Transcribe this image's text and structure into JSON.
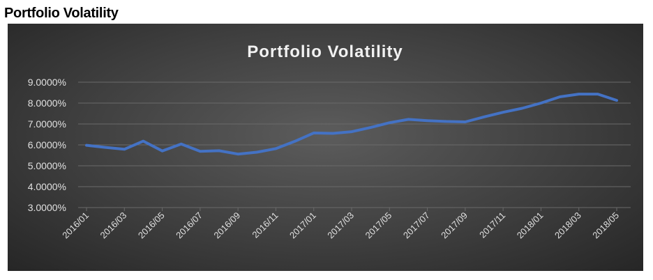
{
  "page": {
    "heading": "Portfolio Volatility"
  },
  "colors": {
    "line": "#4472C4",
    "grid": "#6a6a6a",
    "background": "#404040",
    "text": "#e0e0e0"
  },
  "chart_data": {
    "type": "line",
    "title": "Portfolio Volatility",
    "xlabel": "",
    "ylabel": "",
    "ylim": [
      0.03,
      0.09
    ],
    "yticks": [
      "3.0000%",
      "4.0000%",
      "5.0000%",
      "6.0000%",
      "7.0000%",
      "8.0000%",
      "9.0000%"
    ],
    "ytick_values": [
      0.03,
      0.04,
      0.05,
      0.06,
      0.07,
      0.08,
      0.09
    ],
    "xtick_labels": [
      "2016/01",
      "2016/03",
      "2016/05",
      "2016/07",
      "2016/09",
      "2016/11",
      "2017/01",
      "2017/03",
      "2017/05",
      "2017/07",
      "2017/09",
      "2017/11",
      "2018/01",
      "2018/03",
      "2018/05"
    ],
    "grid": true,
    "legend": "none",
    "x": [
      "2016/01",
      "2016/02",
      "2016/03",
      "2016/04",
      "2016/05",
      "2016/06",
      "2016/07",
      "2016/08",
      "2016/09",
      "2016/10",
      "2016/11",
      "2016/12",
      "2017/01",
      "2017/02",
      "2017/03",
      "2017/04",
      "2017/05",
      "2017/06",
      "2017/07",
      "2017/08",
      "2017/09",
      "2017/10",
      "2017/11",
      "2017/12",
      "2018/01",
      "2018/02",
      "2018/03",
      "2018/04",
      "2018/05"
    ],
    "series": [
      {
        "values": [
          0.0598,
          0.0588,
          0.0579,
          0.0618,
          0.0571,
          0.0604,
          0.0569,
          0.0572,
          0.0556,
          0.0565,
          0.0582,
          0.0617,
          0.0657,
          0.0655,
          0.0663,
          0.0683,
          0.0706,
          0.0722,
          0.0716,
          0.0712,
          0.071,
          0.0734,
          0.0756,
          0.0775,
          0.08,
          0.083,
          0.0843,
          0.0843,
          0.0813
        ]
      }
    ]
  }
}
